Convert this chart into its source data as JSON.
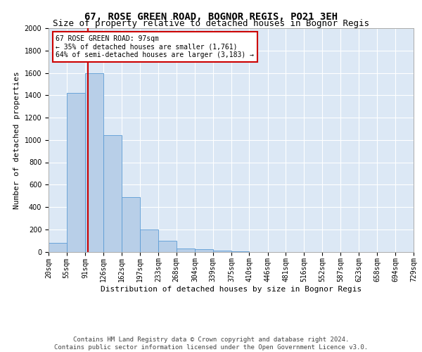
{
  "title": "67, ROSE GREEN ROAD, BOGNOR REGIS, PO21 3EH",
  "subtitle": "Size of property relative to detached houses in Bognor Regis",
  "xlabel": "Distribution of detached houses by size in Bognor Regis",
  "ylabel": "Number of detached properties",
  "bin_edges": [
    20,
    55,
    91,
    126,
    162,
    197,
    233,
    268,
    304,
    339,
    375,
    410,
    446,
    481,
    516,
    552,
    587,
    623,
    658,
    694,
    729
  ],
  "bar_heights": [
    80,
    1420,
    1600,
    1040,
    490,
    200,
    100,
    30,
    20,
    8,
    5,
    0,
    0,
    0,
    0,
    0,
    0,
    0,
    0,
    0
  ],
  "bar_color": "#b8cfe8",
  "bar_edge_color": "#5b9bd5",
  "property_size": 97,
  "red_line_color": "#cc0000",
  "annotation_text": "67 ROSE GREEN ROAD: 97sqm\n← 35% of detached houses are smaller (1,761)\n64% of semi-detached houses are larger (3,183) →",
  "annotation_box_color": "#ffffff",
  "annotation_box_edge_color": "#cc0000",
  "ylim": [
    0,
    2000
  ],
  "yticks": [
    0,
    200,
    400,
    600,
    800,
    1000,
    1200,
    1400,
    1600,
    1800,
    2000
  ],
  "background_color": "#dce8f5",
  "grid_color": "#c0d0e0",
  "footer_text": "Contains HM Land Registry data © Crown copyright and database right 2024.\nContains public sector information licensed under the Open Government Licence v3.0.",
  "title_fontsize": 10,
  "subtitle_fontsize": 9,
  "xlabel_fontsize": 8,
  "ylabel_fontsize": 8,
  "tick_fontsize": 7,
  "annotation_fontsize": 7,
  "footer_fontsize": 6.5
}
